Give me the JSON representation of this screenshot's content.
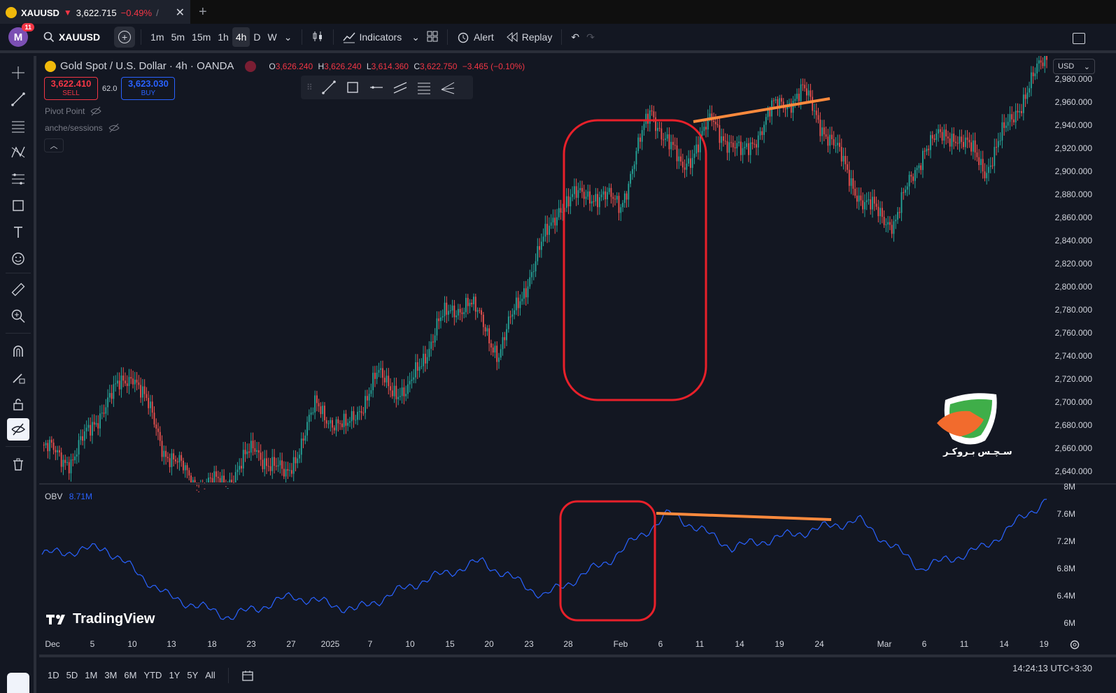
{
  "tab": {
    "symbol": "XAUUSD",
    "arrow": "▼",
    "price": "3,622.715",
    "change": "−0.49%",
    "slash": "/",
    "close": "✕",
    "new_tab": "+"
  },
  "toolbar": {
    "avatar_letter": "M",
    "notifications": "11",
    "symbol": "XAUUSD",
    "intervals": [
      "1m",
      "5m",
      "15m",
      "1h",
      "4h",
      "D",
      "W"
    ],
    "active_interval": "4h",
    "indicators_label": "Indicators",
    "alert_label": "Alert",
    "replay_label": "Replay"
  },
  "legend": {
    "title": "Gold Spot / U.S. Dollar · 4h · OANDA",
    "o_label": "O",
    "o": "3,626.240",
    "h_label": "H",
    "h": "3,626.240",
    "l_label": "L",
    "l": "3,614.360",
    "c_label": "C",
    "c": "3,622.750",
    "change": "−3.465 (−0.10%)"
  },
  "trade": {
    "sell_price": "3,622.410",
    "sell_label": "SELL",
    "spread": "62.0",
    "buy_price": "3,623.030",
    "buy_label": "BUY"
  },
  "indicators": {
    "pivot": "Pivot Point",
    "sessions": "anche/sessions"
  },
  "currency": "USD",
  "price_axis": [
    "2,980.000",
    "2,960.000",
    "2,940.000",
    "2,920.000",
    "2,900.000",
    "2,880.000",
    "2,860.000",
    "2,840.000",
    "2,820.000",
    "2,800.000",
    "2,780.000",
    "2,760.000",
    "2,740.000",
    "2,720.000",
    "2,700.000",
    "2,680.000",
    "2,660.000",
    "2,640.000"
  ],
  "obv": {
    "label": "OBV",
    "value": "8.71M",
    "axis": [
      "8M",
      "7.6M",
      "7.2M",
      "6.8M",
      "6.4M",
      "6M"
    ]
  },
  "time_axis": [
    "Dec",
    "5",
    "10",
    "13",
    "18",
    "23",
    "27",
    "2025",
    "7",
    "10",
    "15",
    "20",
    "23",
    "28",
    "Feb",
    "6",
    "11",
    "14",
    "19",
    "24",
    "Mar",
    "6",
    "11",
    "14",
    "19"
  ],
  "ranges": [
    "1D",
    "5D",
    "1M",
    "3M",
    "6M",
    "YTD",
    "1Y",
    "5Y",
    "All"
  ],
  "clock": "14:24:13 UTC+3:30",
  "brand": "TradingView",
  "watermark": "سـچـس بـروكـر",
  "colors": {
    "up": "#26a69a",
    "down": "#ef5350",
    "obv": "#2962ff",
    "annotation_box": "#e8202a",
    "trendline": "#ff8a3d",
    "background": "#131722"
  },
  "chart_data": {
    "type": "candlestick",
    "symbol": "XAUUSD",
    "interval": "4h",
    "price_ylim": [
      2625,
      2985
    ],
    "approx_close_path": [
      {
        "x": "Dec 1",
        "y": 2655
      },
      {
        "x": "Dec 5",
        "y": 2645
      },
      {
        "x": "Dec 10",
        "y": 2690
      },
      {
        "x": "Dec 12",
        "y": 2720
      },
      {
        "x": "Dec 16",
        "y": 2655
      },
      {
        "x": "Dec 19",
        "y": 2625
      },
      {
        "x": "Dec 27",
        "y": 2625
      },
      {
        "x": "Jan 2",
        "y": 2655
      },
      {
        "x": "Jan 6",
        "y": 2630
      },
      {
        "x": "Jan 10",
        "y": 2690
      },
      {
        "x": "Jan 13",
        "y": 2670
      },
      {
        "x": "Jan 16",
        "y": 2715
      },
      {
        "x": "Jan 20",
        "y": 2700
      },
      {
        "x": "Jan 22",
        "y": 2760
      },
      {
        "x": "Jan 24",
        "y": 2780
      },
      {
        "x": "Jan 27",
        "y": 2735
      },
      {
        "x": "Jan 30",
        "y": 2800
      },
      {
        "x": "Feb 3",
        "y": 2860
      },
      {
        "x": "Feb 5",
        "y": 2870
      },
      {
        "x": "Feb 7",
        "y": 2860
      },
      {
        "x": "Feb 10",
        "y": 2940
      },
      {
        "x": "Feb 12",
        "y": 2890
      },
      {
        "x": "Feb 14",
        "y": 2930
      },
      {
        "x": "Feb 17",
        "y": 2900
      },
      {
        "x": "Feb 20",
        "y": 2940
      },
      {
        "x": "Feb 24",
        "y": 2955
      },
      {
        "x": "Feb 26",
        "y": 2910
      },
      {
        "x": "Feb 28",
        "y": 2860
      },
      {
        "x": "Mar 1",
        "y": 2845
      },
      {
        "x": "Mar 4",
        "y": 2910
      },
      {
        "x": "Mar 7",
        "y": 2920
      },
      {
        "x": "Mar 11",
        "y": 2890
      },
      {
        "x": "Mar 13",
        "y": 2940
      },
      {
        "x": "Mar 17",
        "y": 2985
      }
    ],
    "obv": {
      "ylim": [
        6.0,
        8.0
      ],
      "approx_path": [
        {
          "x": "Dec 1",
          "y": 7.0
        },
        {
          "x": "Dec 10",
          "y": 7.1
        },
        {
          "x": "Dec 19",
          "y": 6.4
        },
        {
          "x": "Dec 27",
          "y": 6.1
        },
        {
          "x": "Jan 2",
          "y": 6.4
        },
        {
          "x": "Jan 10",
          "y": 6.2
        },
        {
          "x": "Jan 20",
          "y": 6.6
        },
        {
          "x": "Jan 24",
          "y": 6.9
        },
        {
          "x": "Jan 27",
          "y": 6.4
        },
        {
          "x": "Feb 3",
          "y": 6.9
        },
        {
          "x": "Feb 6",
          "y": 7.6
        },
        {
          "x": "Feb 11",
          "y": 7.1
        },
        {
          "x": "Feb 19",
          "y": 7.3
        },
        {
          "x": "Feb 24",
          "y": 7.5
        },
        {
          "x": "Mar 1",
          "y": 6.8
        },
        {
          "x": "Mar 11",
          "y": 7.1
        },
        {
          "x": "Mar 19",
          "y": 7.8
        }
      ]
    }
  }
}
